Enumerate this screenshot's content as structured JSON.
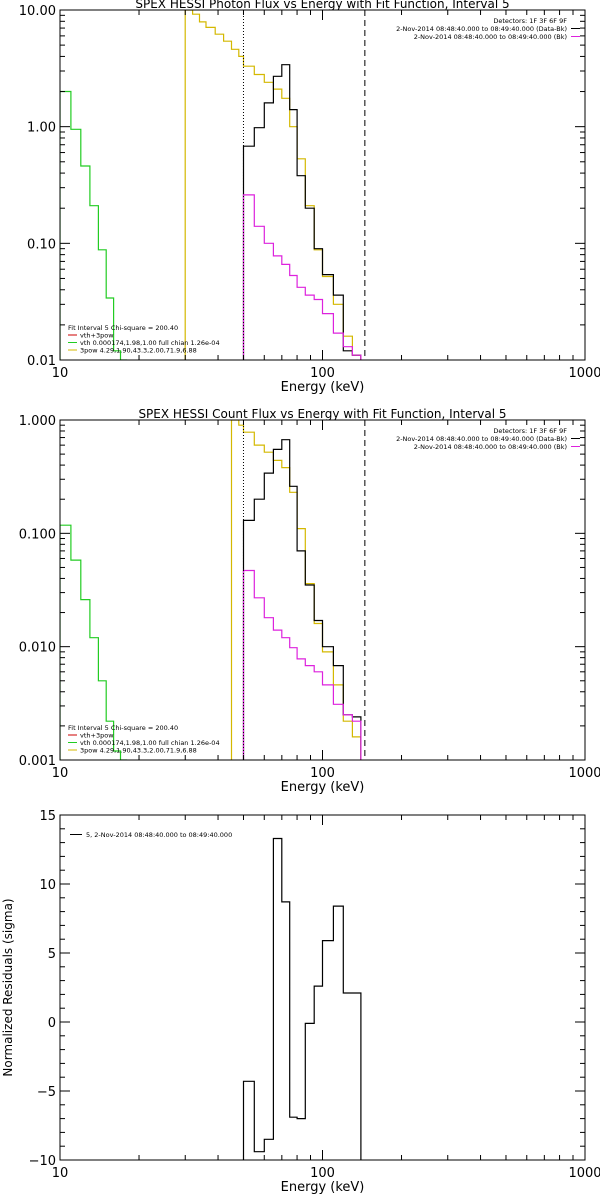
{
  "chart_data": [
    {
      "type": "line",
      "title": "SPEX HESSI Photon Flux vs Energy with Fit Function, Interval 5",
      "xlabel": "Energy (keV)",
      "ylabel": "",
      "x_scale": "log",
      "y_scale": "log",
      "xlim": [
        10,
        1000
      ],
      "ylim": [
        0.01,
        10
      ],
      "x_ticks": [
        {
          "v": 10,
          "label": "10"
        },
        {
          "v": 100,
          "label": "100"
        },
        {
          "v": 1000,
          "label": "1000"
        }
      ],
      "y_ticks": [
        {
          "v": 0.01,
          "label": "0.01"
        },
        {
          "v": 0.1,
          "label": "0.10"
        },
        {
          "v": 1,
          "label": "1.00"
        },
        {
          "v": 10,
          "label": "10.00"
        }
      ],
      "vlines": [
        {
          "x": 50,
          "style": "dotted"
        },
        {
          "x": 145,
          "style": "dashed"
        }
      ],
      "legend_top_right": {
        "lines": [
          {
            "text": "Detectors: 1F 3F 6F 9F",
            "color": "#000000"
          },
          {
            "text": "2-Nov-2014 08:48:40.000 to 08:49:40.000 (Data-Bk)",
            "color": "#000000"
          },
          {
            "text": "2-Nov-2014 08:48:40.000 to 08:49:40.000 (Bk)",
            "color": "#dd22dd"
          }
        ]
      },
      "legend_bottom_left": {
        "lines": [
          {
            "text": "Fit Interval 5   Chi-square = 200.40",
            "color": "#000000"
          },
          {
            "text": "vth+3pow",
            "color": "#cc0000"
          },
          {
            "text": "vth 0.000174,1.98,1.00  full chian 1.26e-04",
            "color": "#22cc22"
          },
          {
            "text": "3pow 4.29,1.90,43.3,2.00,71.9,6.88",
            "color": "#d4b800"
          }
        ]
      },
      "series": [
        {
          "name": "vth",
          "color": "#22cc22",
          "edges": [
            10,
            11,
            12,
            13,
            14,
            15,
            16,
            17,
            18
          ],
          "values": [
            2.0,
            0.95,
            0.46,
            0.21,
            0.088,
            0.034,
            0.012,
            0.006
          ]
        },
        {
          "name": "3pow",
          "color": "#d4b800",
          "edges": [
            30,
            32,
            34,
            36,
            39,
            42,
            45,
            48,
            50,
            55,
            60,
            65,
            70,
            75,
            80,
            86,
            93,
            100,
            110,
            120,
            130,
            140
          ],
          "values": [
            10.5,
            9.2,
            7.9,
            7.1,
            6.2,
            5.4,
            4.6,
            4.0,
            3.3,
            2.8,
            2.4,
            2.1,
            1.75,
            1.0,
            0.53,
            0.21,
            0.088,
            0.052,
            0.03,
            0.016,
            0.011
          ]
        },
        {
          "name": "Data-Bk",
          "color": "#000000",
          "edges": [
            50,
            55,
            60,
            65,
            70,
            75,
            80,
            86,
            93,
            100,
            110,
            120,
            130,
            140
          ],
          "values": [
            0.68,
            0.98,
            1.6,
            2.7,
            3.4,
            1.4,
            0.38,
            0.2,
            0.09,
            0.054,
            0.036,
            0.012,
            0.011
          ]
        },
        {
          "name": "Bk",
          "color": "#dd22dd",
          "edges": [
            50,
            55,
            60,
            65,
            70,
            75,
            80,
            86,
            93,
            100,
            110,
            120,
            130,
            140
          ],
          "values": [
            0.26,
            0.14,
            0.1,
            0.078,
            0.066,
            0.053,
            0.042,
            0.036,
            0.033,
            0.025,
            0.017,
            0.013,
            0.011
          ]
        }
      ]
    },
    {
      "type": "line",
      "title": "SPEX HESSI Count Flux vs Energy with Fit Function, Interval 5",
      "xlabel": "Energy (keV)",
      "ylabel": "",
      "x_scale": "log",
      "y_scale": "log",
      "xlim": [
        10,
        1000
      ],
      "ylim": [
        0.001,
        1
      ],
      "x_ticks": [
        {
          "v": 10,
          "label": "10"
        },
        {
          "v": 100,
          "label": "100"
        },
        {
          "v": 1000,
          "label": "1000"
        }
      ],
      "y_ticks": [
        {
          "v": 0.001,
          "label": "0.001"
        },
        {
          "v": 0.01,
          "label": "0.010"
        },
        {
          "v": 0.1,
          "label": "0.100"
        },
        {
          "v": 1,
          "label": "1.000"
        }
      ],
      "vlines": [
        {
          "x": 50,
          "style": "dotted"
        },
        {
          "x": 145,
          "style": "dashed"
        }
      ],
      "legend_top_right": {
        "lines": [
          {
            "text": "Detectors: 1F 3F 6F 9F",
            "color": "#000000"
          },
          {
            "text": "2-Nov-2014 08:48:40.000 to 08:49:40.000 (Data-Bk)",
            "color": "#000000"
          },
          {
            "text": "2-Nov-2014 08:48:40.000 to 08:49:40.000 (Bk)",
            "color": "#dd22dd"
          }
        ]
      },
      "legend_bottom_left": {
        "lines": [
          {
            "text": "Fit Interval 5   Chi-square = 200.40",
            "color": "#000000"
          },
          {
            "text": "vth+3pow",
            "color": "#cc0000"
          },
          {
            "text": "vth 0.000174,1.98,1.00  full chian 1.26e-04",
            "color": "#22cc22"
          },
          {
            "text": "3pow 4.29,1.90,43.3,2.00,71.9,6.88",
            "color": "#d4b800"
          }
        ]
      },
      "series": [
        {
          "name": "vth",
          "color": "#22cc22",
          "edges": [
            10,
            11,
            12,
            13,
            14,
            15,
            16,
            17,
            18
          ],
          "values": [
            0.118,
            0.058,
            0.026,
            0.012,
            0.005,
            0.0022,
            0.0012,
            0.0008
          ]
        },
        {
          "name": "3pow",
          "color": "#d4b800",
          "edges": [
            45,
            48,
            50,
            55,
            60,
            65,
            70,
            75,
            80,
            86,
            93,
            100,
            110,
            120,
            130,
            140
          ],
          "values": [
            1.0,
            0.9,
            0.78,
            0.6,
            0.52,
            0.44,
            0.38,
            0.23,
            0.11,
            0.036,
            0.016,
            0.009,
            0.0046,
            0.0022,
            0.0016
          ]
        },
        {
          "name": "Data-Bk",
          "color": "#000000",
          "edges": [
            50,
            55,
            60,
            65,
            70,
            75,
            80,
            86,
            93,
            100,
            110,
            120,
            130,
            140
          ],
          "values": [
            0.13,
            0.2,
            0.34,
            0.55,
            0.67,
            0.26,
            0.07,
            0.035,
            0.017,
            0.01,
            0.0068,
            0.0025,
            0.0024
          ]
        },
        {
          "name": "Bk",
          "color": "#dd22dd",
          "edges": [
            50,
            55,
            60,
            65,
            70,
            75,
            80,
            86,
            93,
            100,
            110,
            120,
            130,
            140
          ],
          "values": [
            0.047,
            0.027,
            0.018,
            0.014,
            0.012,
            0.0098,
            0.0078,
            0.0068,
            0.006,
            0.0046,
            0.0031,
            0.0025,
            0.0022
          ]
        }
      ]
    },
    {
      "type": "line",
      "title": "",
      "xlabel": "Energy (keV)",
      "ylabel": "Normalized Residuals (sigma)",
      "x_scale": "log",
      "y_scale": "linear",
      "xlim": [
        10,
        1000
      ],
      "ylim": [
        -10,
        15
      ],
      "x_ticks": [
        {
          "v": 10,
          "label": "10"
        },
        {
          "v": 100,
          "label": "100"
        },
        {
          "v": 1000,
          "label": "1000"
        }
      ],
      "y_ticks": [
        {
          "v": -10,
          "label": "−10"
        },
        {
          "v": -5,
          "label": "−5"
        },
        {
          "v": 0,
          "label": "0"
        },
        {
          "v": 5,
          "label": "5"
        },
        {
          "v": 10,
          "label": "10"
        },
        {
          "v": 15,
          "label": "15"
        }
      ],
      "vlines": [],
      "legend_top_left": {
        "lines": [
          {
            "text": "5, 2-Nov-2014 08:48:40.000 to 08:49:40.000",
            "color": "#000000"
          }
        ]
      },
      "series": [
        {
          "name": "5, 2-Nov-2014 08:48:40.000 to 08:49:40.000",
          "color": "#000000",
          "edges": [
            50,
            55,
            60,
            65,
            70,
            75,
            80,
            86,
            93,
            100,
            110,
            120,
            130,
            140
          ],
          "values": [
            -4.3,
            -9.4,
            -8.5,
            13.3,
            8.7,
            -6.9,
            -7.0,
            -0.1,
            2.6,
            5.9,
            8.4,
            2.1,
            2.1
          ]
        }
      ]
    }
  ]
}
